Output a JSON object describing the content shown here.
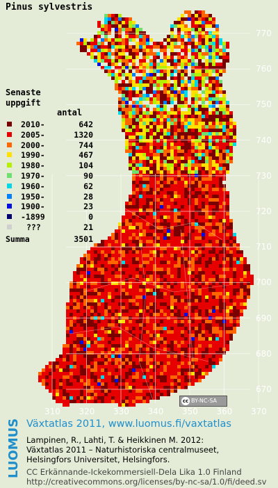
{
  "title": "Pinus sylvestris",
  "legend": {
    "heading_line1": "Senaste",
    "heading_line2": "uppgift",
    "count_header": "antal",
    "rows": [
      {
        "label": "2010-",
        "count": "642",
        "color": "#7a0000"
      },
      {
        "label": "2005-",
        "count": "1320",
        "color": "#e60000"
      },
      {
        "label": "2000-",
        "count": "744",
        "color": "#ff6600"
      },
      {
        "label": "1990-",
        "count": "467",
        "color": "#ffe000"
      },
      {
        "label": "1980-",
        "count": "104",
        "color": "#b4f000"
      },
      {
        "label": "1970-",
        "count": "90",
        "color": "#6ee070"
      },
      {
        "label": "1960-",
        "count": "62",
        "color": "#00d8e8"
      },
      {
        "label": "1950-",
        "count": "28",
        "color": "#0080ff"
      },
      {
        "label": "1900-",
        "count": "23",
        "color": "#0010e0"
      },
      {
        "label": "-1899",
        "count": "0",
        "color": "#000070"
      },
      {
        "label": "???",
        "count": "21",
        "color": "#cfcfcf"
      }
    ],
    "total_label": "Summa",
    "total_count": "3501"
  },
  "grid_axis": {
    "y_ticks": [
      "770",
      "760",
      "750",
      "740",
      "730",
      "720",
      "710",
      "700",
      "690",
      "680",
      "670"
    ],
    "x_ticks": [
      "310",
      "320",
      "330",
      "340",
      "350",
      "360",
      "370"
    ]
  },
  "cc_badge": "BY-NC-SA",
  "publisher_logo": "LUOMUS",
  "credits": {
    "headline": "Växtatlas 2011, www.luomus.fi/vaxtatlas",
    "citation_line1": "Lampinen, R., Lahti, T. & Heikkinen M. 2012:",
    "citation_line2": "Växtatlas 2011 – Naturhistoriska centralmuseet,",
    "citation_line3": "Helsingfors Universitet, Helsingfors.",
    "license_line1": "CC Erkännande-Ickekommersiell-Dela Lika 1.0 Finland",
    "license_line2": "http://creativecommons.org/licenses/by-nc-sa/1.0/fi/deed.sv"
  }
}
